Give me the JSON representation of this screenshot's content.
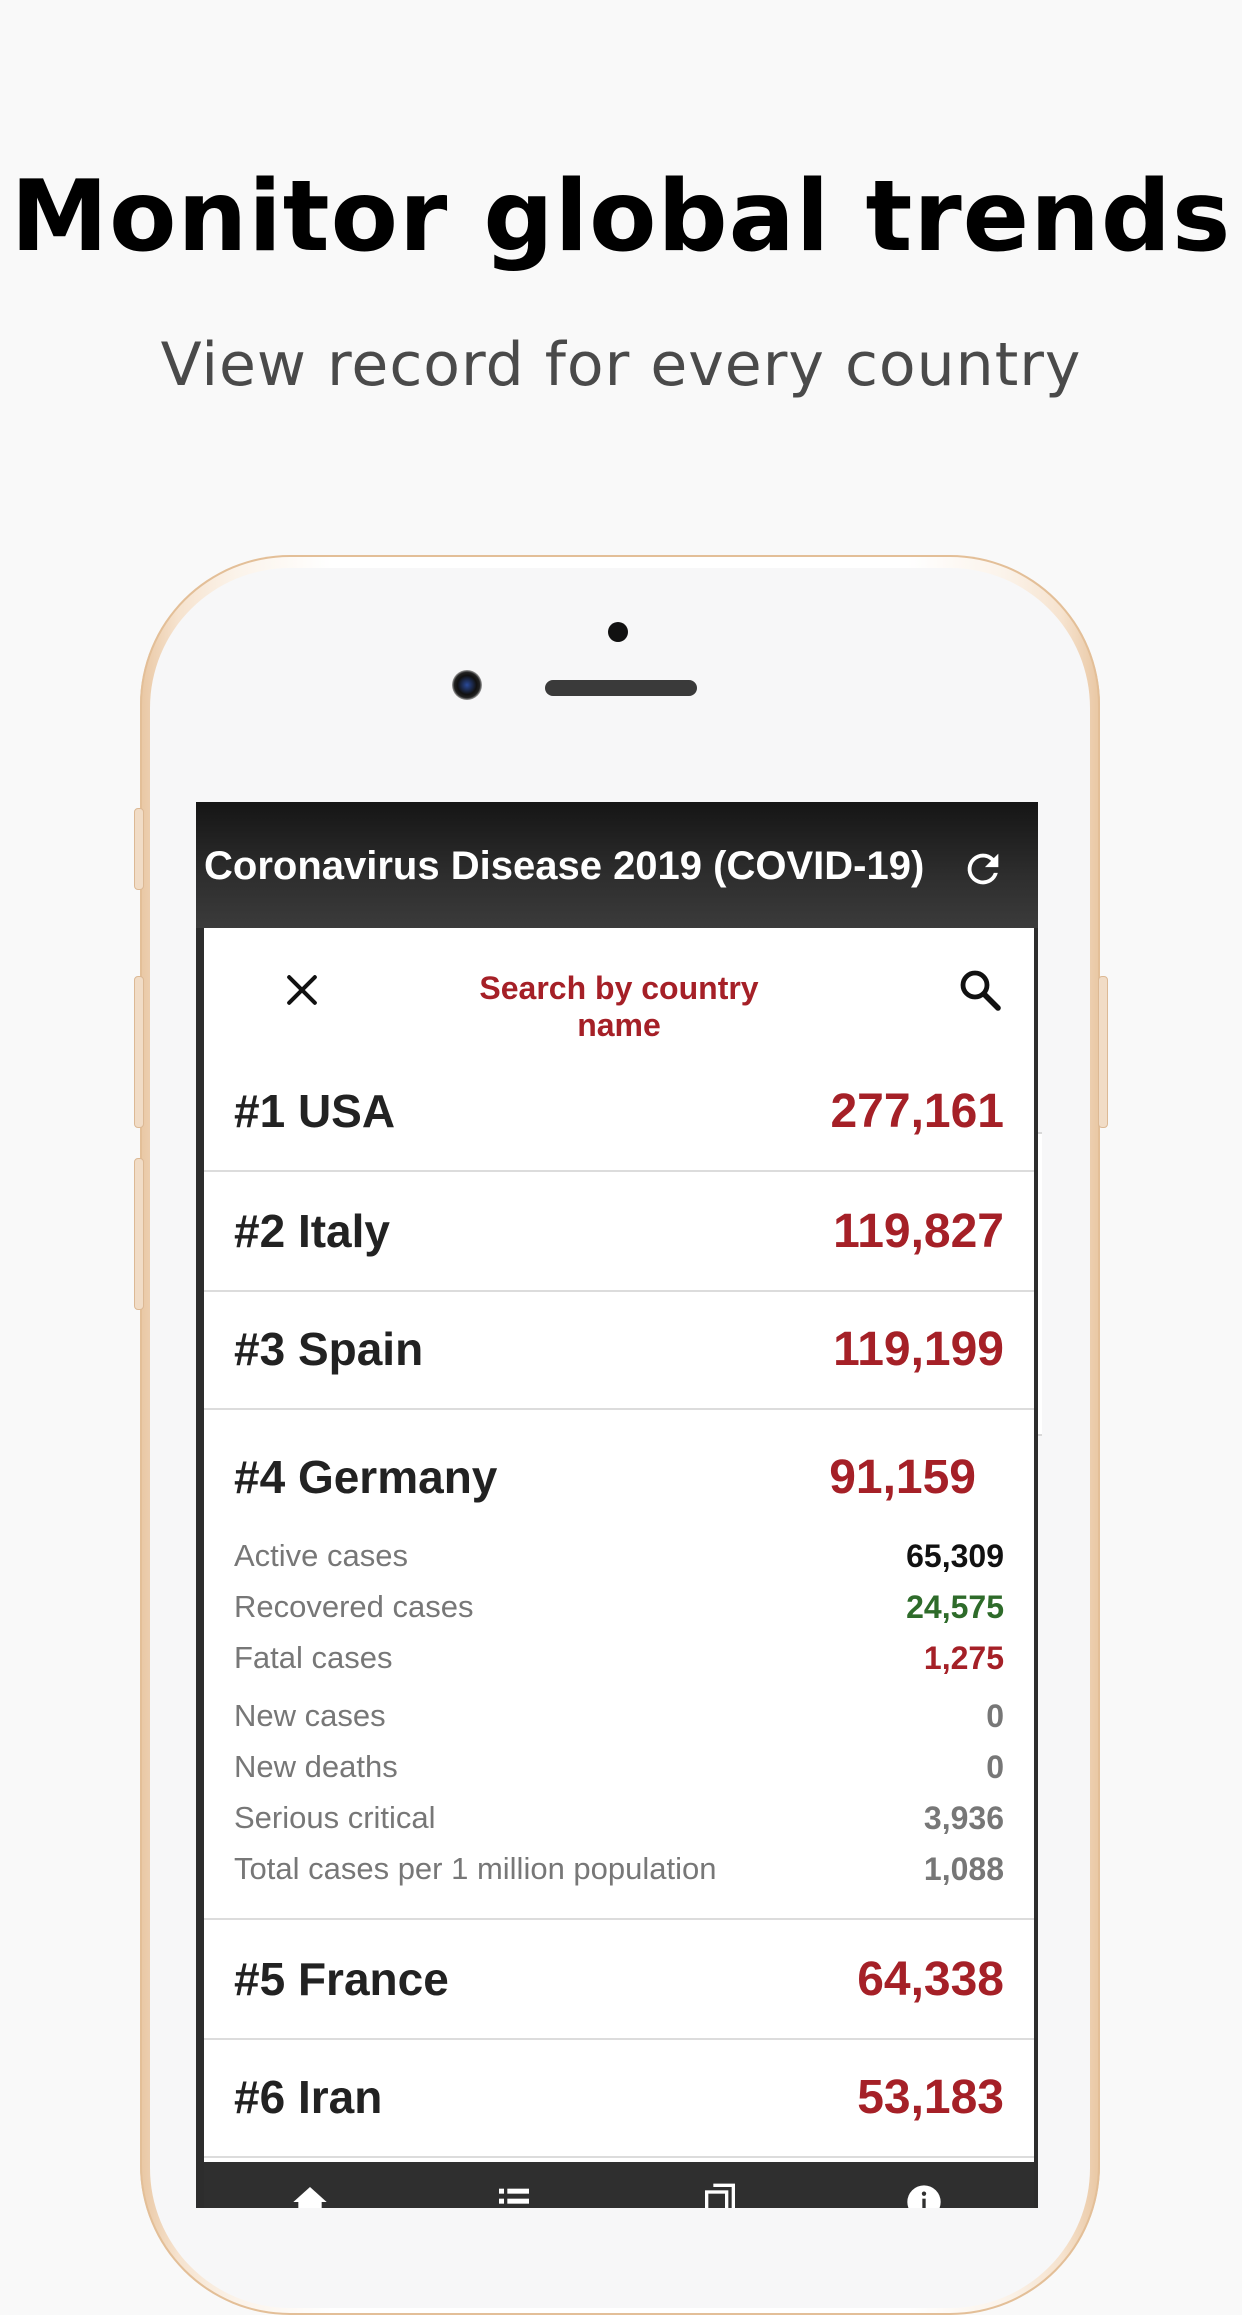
{
  "promo": {
    "headline": "Monitor global trends",
    "subheadline": "View record for every country"
  },
  "app": {
    "title": "Coronavirus Disease 2019 (COVID-19)",
    "search_placeholder": "Search by country name"
  },
  "countries": [
    {
      "label": "#1 USA",
      "total": "277,161"
    },
    {
      "label": "#2 Italy",
      "total": "119,827"
    },
    {
      "label": "#3 Spain",
      "total": "119,199"
    },
    {
      "label": "#4 Germany",
      "total": "91,159"
    },
    {
      "label": "#5 France",
      "total": "64,338"
    },
    {
      "label": "#6 Iran",
      "total": "53,183"
    }
  ],
  "details": [
    {
      "label": "Active cases",
      "value": "65,309",
      "color": "#111111"
    },
    {
      "label": "Recovered cases",
      "value": "24,575",
      "color": "#2e6b2a"
    },
    {
      "label": "Fatal cases",
      "value": "1,275",
      "color": "#a52027"
    },
    {
      "label": "New cases",
      "value": "0",
      "color": "#777777"
    },
    {
      "label": "New deaths",
      "value": "0",
      "color": "#777777"
    },
    {
      "label": "Serious critical",
      "value": "3,936",
      "color": "#777777"
    },
    {
      "label": "Total cases per 1 million population",
      "value": "1,088",
      "color": "#777777"
    }
  ],
  "nav": {
    "items": [
      "home-icon",
      "list-icon",
      "copy-icon",
      "info-icon"
    ]
  },
  "colors": {
    "accent": "#a52027",
    "recovered": "#2e6b2a",
    "app_bar": "#2d2d2d"
  }
}
